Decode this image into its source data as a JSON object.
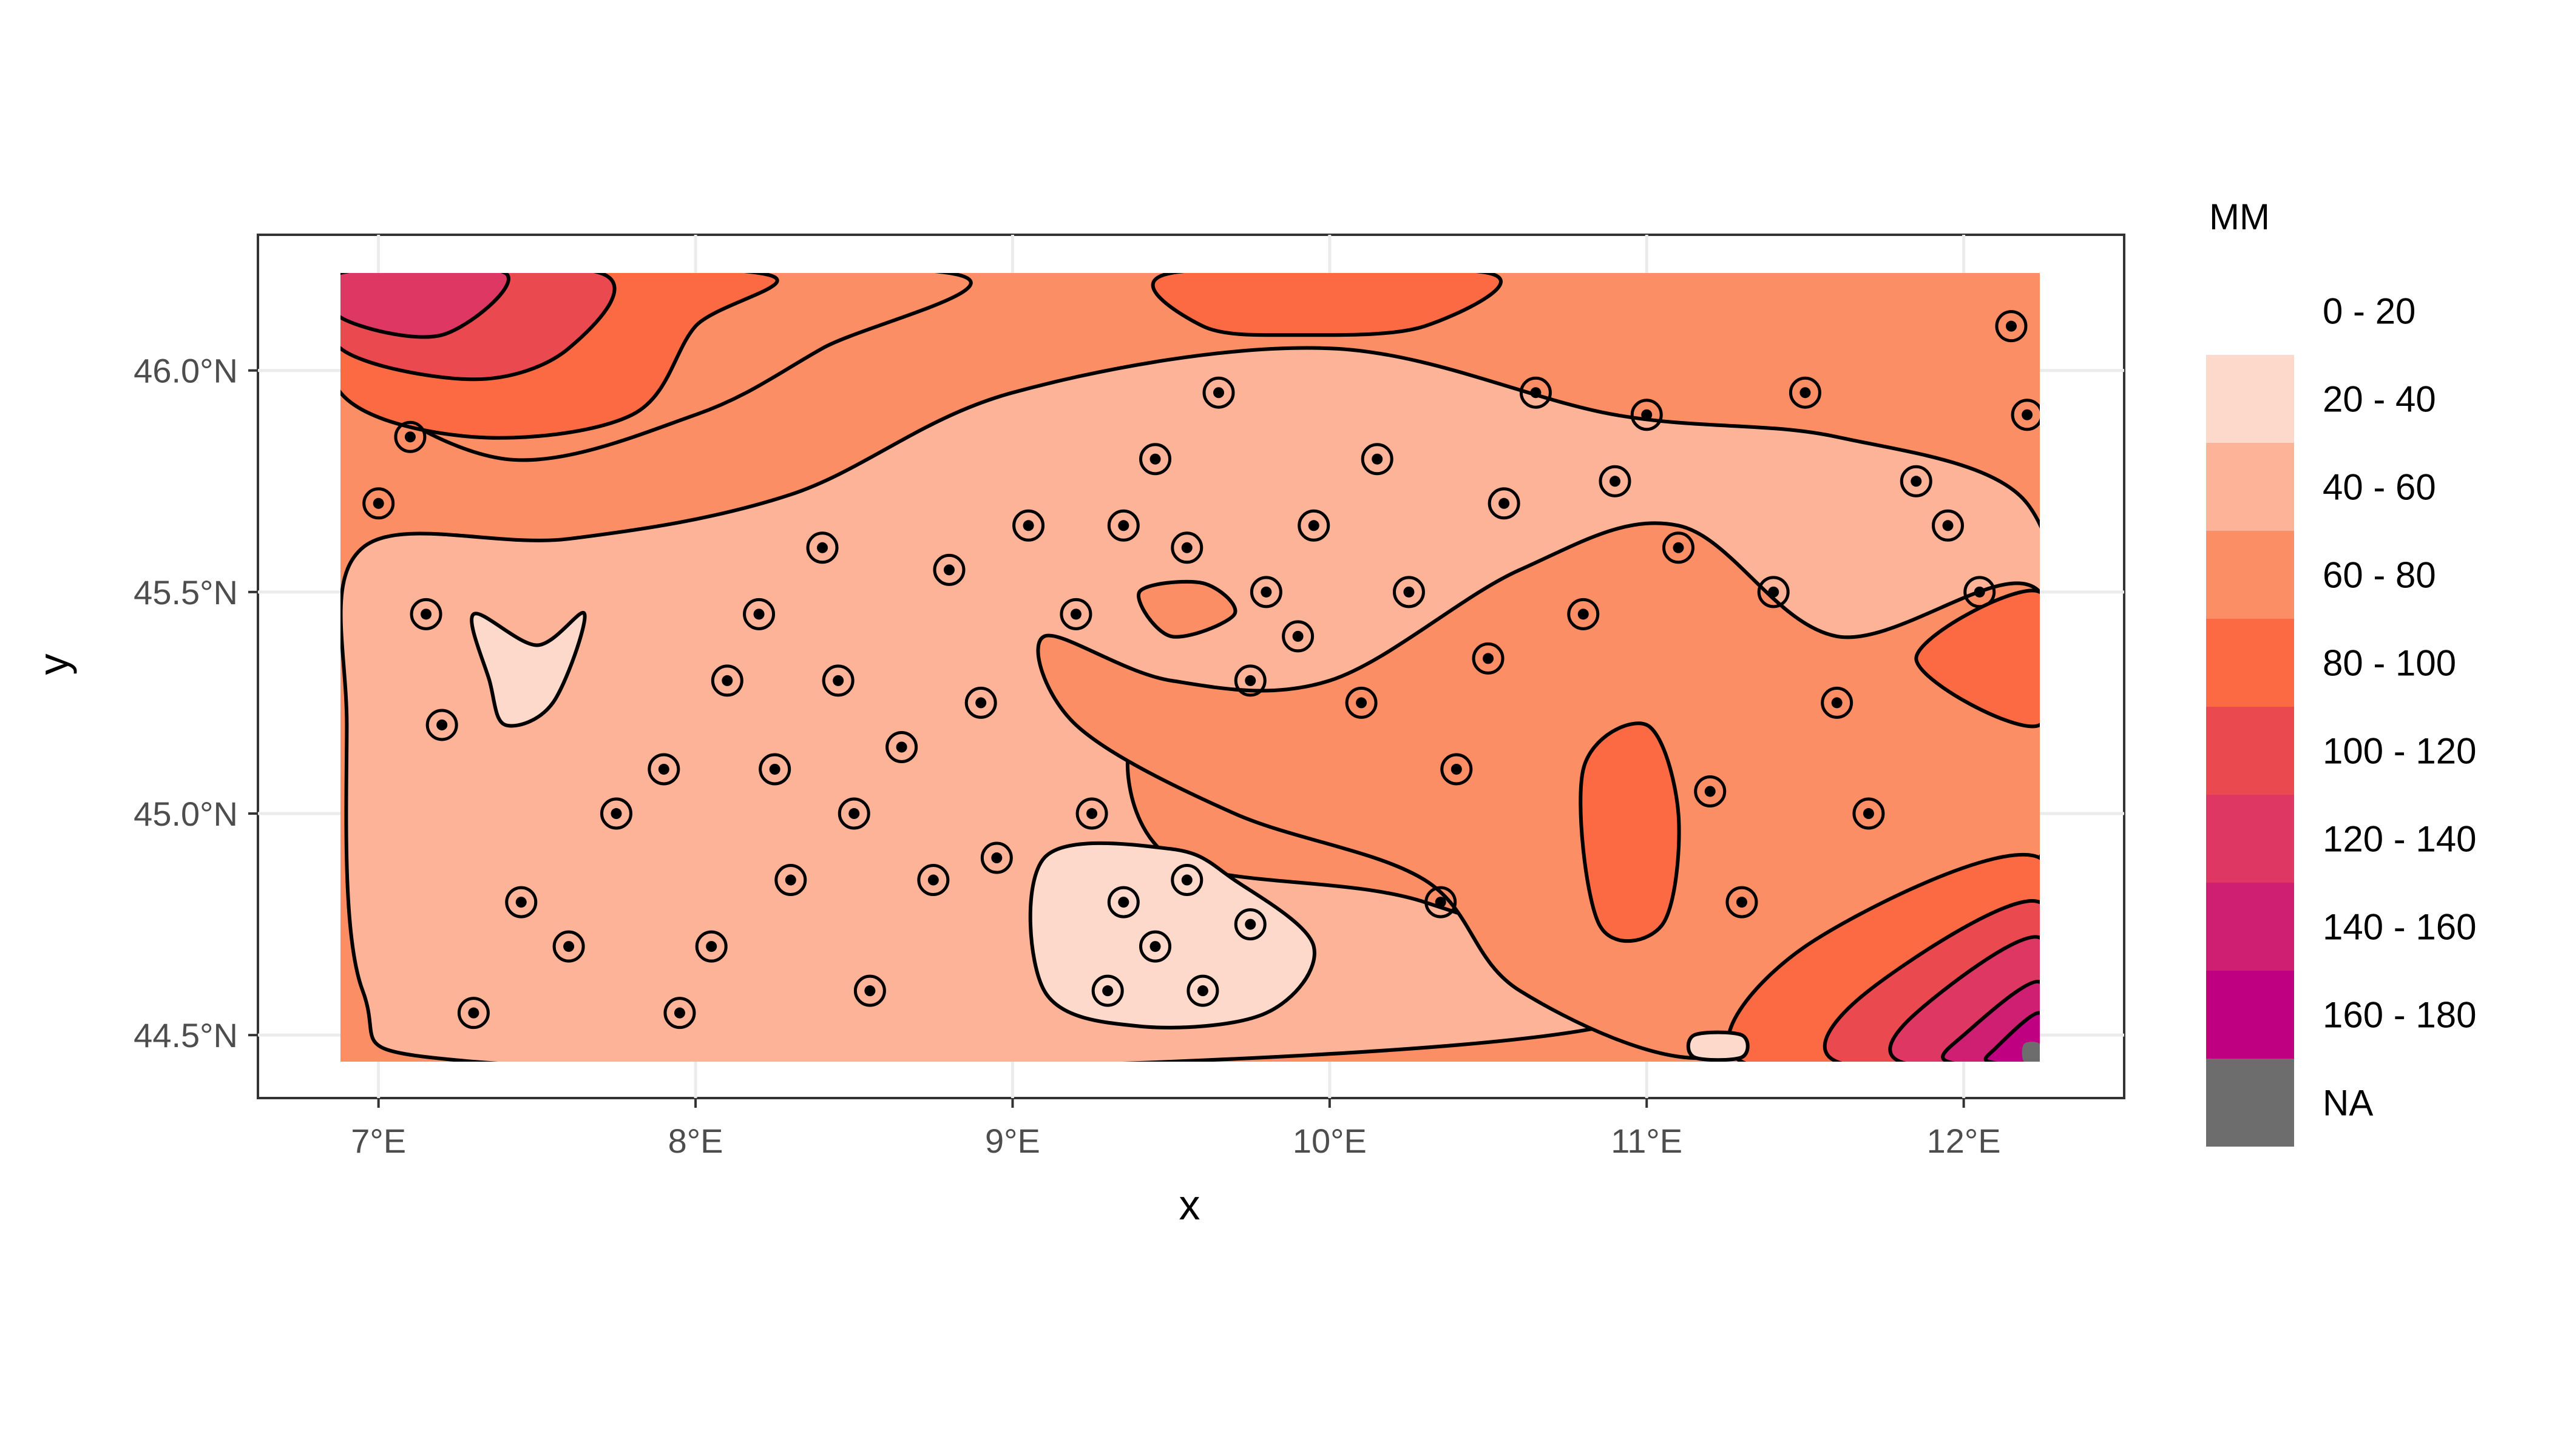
{
  "chart_data": {
    "type": "heatmap",
    "subtype": "filled-contour-map",
    "title": "",
    "xlabel": "x",
    "ylabel": "y",
    "x_ticks": [
      "7°E",
      "8°E",
      "9°E",
      "10°E",
      "11°E",
      "12°E"
    ],
    "x_tick_values": [
      7,
      8,
      9,
      10,
      11,
      12
    ],
    "y_ticks": [
      "44.5°N",
      "45.0°N",
      "45.5°N",
      "46.0°N"
    ],
    "y_tick_values": [
      44.5,
      45.0,
      45.5,
      46.0
    ],
    "xlim": [
      6.88,
      12.24
    ],
    "ylim": [
      44.44,
      46.22
    ],
    "legend": {
      "title": "MM",
      "placement": "right",
      "entries": [
        {
          "label": "0 - 20",
          "color": "#ffffff"
        },
        {
          "label": "20 - 40",
          "color": "#fdd9cc"
        },
        {
          "label": "40 - 60",
          "color": "#fcb398"
        },
        {
          "label": "60 - 80",
          "color": "#fc8e66"
        },
        {
          "label": "80 - 100",
          "color": "#fc6a44"
        },
        {
          "label": "100 - 120",
          "color": "#ea4a4f"
        },
        {
          "label": "120 - 140",
          "color": "#df3763"
        },
        {
          "label": "140 - 160",
          "color": "#cf1f72"
        },
        {
          "label": "160 - 180",
          "color": "#be0081"
        },
        {
          "label": "NA",
          "color": "#6d6d6d"
        }
      ]
    },
    "zones": [
      {
        "band": "40 - 60",
        "points": [
          [
            6.95,
            45.6
          ],
          [
            7.6,
            45.62
          ],
          [
            8.3,
            45.72
          ],
          [
            9.0,
            45.95
          ],
          [
            10.0,
            46.05
          ],
          [
            10.9,
            45.9
          ],
          [
            11.6,
            45.85
          ],
          [
            12.2,
            45.7
          ],
          [
            12.2,
            45.3
          ],
          [
            11.2,
            45.3
          ],
          [
            10.4,
            45.4
          ],
          [
            9.9,
            45.1
          ],
          [
            9.4,
            45.2
          ],
          [
            9.5,
            44.9
          ],
          [
            10.3,
            44.8
          ],
          [
            11.0,
            44.55
          ],
          [
            9.5,
            44.44
          ],
          [
            7.3,
            44.44
          ],
          [
            6.95,
            44.6
          ],
          [
            6.9,
            45.2
          ]
        ]
      },
      {
        "band": "60 - 80",
        "points": [
          [
            10.0,
            45.3
          ],
          [
            10.6,
            45.55
          ],
          [
            11.1,
            45.65
          ],
          [
            11.6,
            45.4
          ],
          [
            12.24,
            45.5
          ],
          [
            12.24,
            44.9
          ],
          [
            11.6,
            44.7
          ],
          [
            11.2,
            44.45
          ],
          [
            10.6,
            44.6
          ],
          [
            10.3,
            44.85
          ],
          [
            9.7,
            45.0
          ],
          [
            9.2,
            45.2
          ],
          [
            9.1,
            45.4
          ],
          [
            9.5,
            45.3
          ]
        ]
      },
      {
        "band": "60 - 80",
        "points": [
          [
            6.88,
            46.0
          ],
          [
            7.4,
            45.8
          ],
          [
            8.0,
            45.9
          ],
          [
            8.4,
            46.05
          ],
          [
            8.8,
            46.22
          ],
          [
            6.88,
            46.22
          ]
        ]
      },
      {
        "band": "60 - 80",
        "points": [
          [
            9.4,
            45.5
          ],
          [
            9.6,
            45.52
          ],
          [
            9.7,
            45.45
          ],
          [
            9.5,
            45.4
          ]
        ]
      },
      {
        "band": "80 - 100",
        "points": [
          [
            6.88,
            46.22
          ],
          [
            6.88,
            45.95
          ],
          [
            7.3,
            45.85
          ],
          [
            7.8,
            45.9
          ],
          [
            8.0,
            46.1
          ],
          [
            8.2,
            46.22
          ]
        ]
      },
      {
        "band": "80 - 100",
        "points": [
          [
            10.8,
            45.1
          ],
          [
            11.0,
            45.2
          ],
          [
            11.1,
            45.0
          ],
          [
            11.05,
            44.75
          ],
          [
            10.85,
            44.75
          ]
        ]
      },
      {
        "band": "80 - 100",
        "points": [
          [
            11.85,
            45.35
          ],
          [
            12.24,
            45.5
          ],
          [
            12.24,
            45.2
          ]
        ]
      },
      {
        "band": "80 - 100",
        "points": [
          [
            11.5,
            44.7
          ],
          [
            12.24,
            44.9
          ],
          [
            12.24,
            44.44
          ],
          [
            11.3,
            44.44
          ]
        ]
      },
      {
        "band": "80 - 100",
        "points": [
          [
            9.5,
            46.22
          ],
          [
            10.5,
            46.22
          ],
          [
            10.3,
            46.1
          ],
          [
            9.9,
            46.08
          ],
          [
            9.6,
            46.1
          ]
        ]
      },
      {
        "band": "100 - 120",
        "points": [
          [
            6.88,
            46.22
          ],
          [
            6.88,
            46.05
          ],
          [
            7.3,
            45.98
          ],
          [
            7.6,
            46.05
          ],
          [
            7.7,
            46.22
          ]
        ]
      },
      {
        "band": "100 - 120",
        "points": [
          [
            11.7,
            44.6
          ],
          [
            12.24,
            44.8
          ],
          [
            12.24,
            44.44
          ],
          [
            11.6,
            44.44
          ]
        ]
      },
      {
        "band": "120 - 140",
        "points": [
          [
            6.88,
            46.22
          ],
          [
            6.88,
            46.12
          ],
          [
            7.2,
            46.08
          ],
          [
            7.4,
            46.22
          ]
        ]
      },
      {
        "band": "120 - 140",
        "points": [
          [
            11.85,
            44.55
          ],
          [
            12.24,
            44.72
          ],
          [
            12.24,
            44.44
          ],
          [
            11.8,
            44.44
          ]
        ]
      },
      {
        "band": "140 - 160",
        "points": [
          [
            12.0,
            44.5
          ],
          [
            12.24,
            44.62
          ],
          [
            12.24,
            44.44
          ],
          [
            11.95,
            44.44
          ]
        ]
      },
      {
        "band": "160 - 180",
        "points": [
          [
            12.1,
            44.47
          ],
          [
            12.24,
            44.55
          ],
          [
            12.24,
            44.44
          ],
          [
            12.08,
            44.44
          ]
        ]
      },
      {
        "band": "20 - 40",
        "points": [
          [
            7.3,
            45.45
          ],
          [
            7.5,
            45.38
          ],
          [
            7.65,
            45.45
          ],
          [
            7.55,
            45.25
          ],
          [
            7.4,
            45.2
          ],
          [
            7.35,
            45.3
          ]
        ]
      },
      {
        "band": "20 - 40",
        "points": [
          [
            9.1,
            44.9
          ],
          [
            9.5,
            44.92
          ],
          [
            9.7,
            44.85
          ],
          [
            9.95,
            44.7
          ],
          [
            9.8,
            44.55
          ],
          [
            9.4,
            44.52
          ],
          [
            9.1,
            44.6
          ]
        ]
      },
      {
        "band": "20 - 40",
        "points": [
          [
            11.15,
            44.5
          ],
          [
            11.3,
            44.5
          ],
          [
            11.3,
            44.45
          ],
          [
            11.15,
            44.45
          ]
        ]
      },
      {
        "band": "NA",
        "points": [
          [
            12.19,
            44.44
          ],
          [
            12.24,
            44.44
          ],
          [
            12.24,
            44.48
          ],
          [
            12.19,
            44.48
          ]
        ]
      }
    ],
    "station_points": [
      [
        7.0,
        45.7
      ],
      [
        7.1,
        45.85
      ],
      [
        7.15,
        45.45
      ],
      [
        7.2,
        45.2
      ],
      [
        7.3,
        44.55
      ],
      [
        7.45,
        44.8
      ],
      [
        7.6,
        44.7
      ],
      [
        7.75,
        45.0
      ],
      [
        7.9,
        45.1
      ],
      [
        7.95,
        44.55
      ],
      [
        8.05,
        44.7
      ],
      [
        8.1,
        45.3
      ],
      [
        8.2,
        45.45
      ],
      [
        8.25,
        45.1
      ],
      [
        8.3,
        44.85
      ],
      [
        8.4,
        45.6
      ],
      [
        8.45,
        45.3
      ],
      [
        8.5,
        45.0
      ],
      [
        8.55,
        44.6
      ],
      [
        8.65,
        45.15
      ],
      [
        8.75,
        44.85
      ],
      [
        8.8,
        45.55
      ],
      [
        8.9,
        45.25
      ],
      [
        8.95,
        44.9
      ],
      [
        9.05,
        45.65
      ],
      [
        9.2,
        45.45
      ],
      [
        9.25,
        45.0
      ],
      [
        9.35,
        45.65
      ],
      [
        9.45,
        45.8
      ],
      [
        9.55,
        45.6
      ],
      [
        9.65,
        45.95
      ],
      [
        9.75,
        45.3
      ],
      [
        9.8,
        45.5
      ],
      [
        9.9,
        45.4
      ],
      [
        9.95,
        45.65
      ],
      [
        10.1,
        45.25
      ],
      [
        10.15,
        45.8
      ],
      [
        10.25,
        45.5
      ],
      [
        10.35,
        44.8
      ],
      [
        10.4,
        45.1
      ],
      [
        10.5,
        45.35
      ],
      [
        10.55,
        45.7
      ],
      [
        10.65,
        45.95
      ],
      [
        10.8,
        45.45
      ],
      [
        10.9,
        45.75
      ],
      [
        11.0,
        45.9
      ],
      [
        11.1,
        45.6
      ],
      [
        11.2,
        45.05
      ],
      [
        11.3,
        44.8
      ],
      [
        11.4,
        45.5
      ],
      [
        11.5,
        45.95
      ],
      [
        11.6,
        45.25
      ],
      [
        11.7,
        45.0
      ],
      [
        11.85,
        45.75
      ],
      [
        11.95,
        45.65
      ],
      [
        12.05,
        45.5
      ],
      [
        12.15,
        46.1
      ],
      [
        12.2,
        45.9
      ],
      [
        9.3,
        44.6
      ],
      [
        9.45,
        44.7
      ],
      [
        9.6,
        44.6
      ],
      [
        9.75,
        44.75
      ],
      [
        9.35,
        44.8
      ],
      [
        9.55,
        44.85
      ]
    ]
  }
}
